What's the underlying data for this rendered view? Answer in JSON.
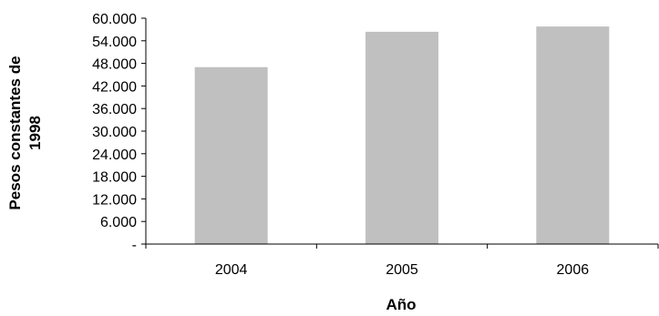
{
  "chart_data": {
    "type": "bar",
    "categories": [
      "2004",
      "2005",
      "2006"
    ],
    "values": [
      47000,
      56400,
      57800
    ],
    "title": "",
    "xlabel": "Año",
    "ylabel": "Pesos constantes de 1998",
    "ylabel_lines": [
      "Pesos constantes de",
      "1998"
    ],
    "ylim": [
      0,
      60000
    ],
    "yticks": [
      0,
      6000,
      12000,
      18000,
      24000,
      30000,
      36000,
      42000,
      48000,
      54000,
      60000
    ],
    "ytick_labels": [
      "-",
      "6.000",
      "12.000",
      "18.000",
      "24.000",
      "30.000",
      "36.000",
      "42.000",
      "48.000",
      "54.000",
      "60.000"
    ],
    "grid": false,
    "legend": "none",
    "bar_color": "#c0c0c0"
  }
}
